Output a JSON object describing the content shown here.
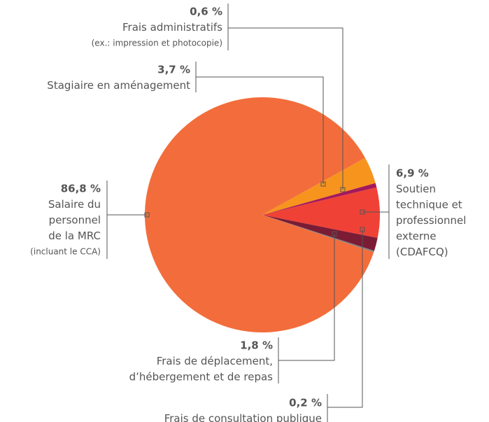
{
  "chart_data": {
    "type": "pie",
    "categories": [
      [
        "Stagiaire en aménagement"
      ],
      [
        "Frais administratifs"
      ],
      [
        "Soutien",
        "technique et",
        "professionnel",
        "externe",
        "(CDAFCQ)"
      ],
      [
        "Frais de déplacement,",
        "d’hébergement et de repas"
      ],
      [
        "Frais de consultation publique"
      ],
      [
        "Salaire du",
        "personnel",
        "de la MRC"
      ]
    ],
    "notes": [
      null,
      "(ex.: impression et photocopie)",
      null,
      null,
      null,
      "(incluant le CCA)"
    ],
    "values": [
      3.7,
      0.6,
      6.9,
      1.8,
      0.2,
      86.8
    ],
    "value_labels": [
      "3,7 %",
      "0,6 %",
      "6,9 %",
      "1,8 %",
      "0,2 %",
      "86,8 %"
    ],
    "colors": [
      "#f7941d",
      "#a3195b",
      "#ef4136",
      "#7b1c35",
      "#808080",
      "#f26d3b"
    ]
  }
}
